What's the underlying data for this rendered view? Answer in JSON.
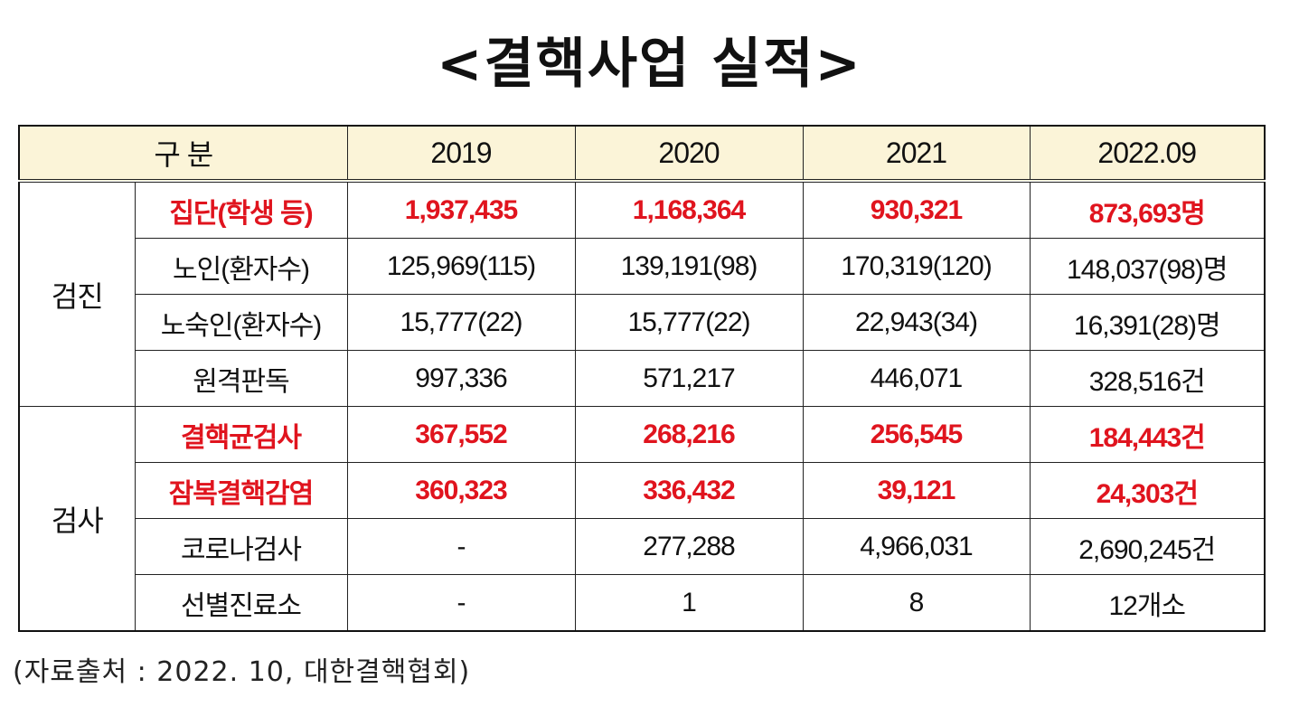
{
  "title": "<결핵사업 실적>",
  "table": {
    "header": {
      "category": "구 분",
      "years": [
        "2019",
        "2020",
        "2021",
        "2022.09"
      ]
    },
    "groups": [
      {
        "label": "검진",
        "rows": [
          {
            "label": "집단(학생 등)",
            "highlight": true,
            "values": [
              "1,937,435",
              "1,168,364",
              "930,321",
              "873,693명"
            ]
          },
          {
            "label": "노인(환자수)",
            "highlight": false,
            "values": [
              "125,969(115)",
              "139,191(98)",
              "170,319(120)",
              "148,037(98)명"
            ]
          },
          {
            "label": "노숙인(환자수)",
            "highlight": false,
            "values": [
              "15,777(22)",
              "15,777(22)",
              "22,943(34)",
              "16,391(28)명"
            ]
          },
          {
            "label": "원격판독",
            "highlight": false,
            "values": [
              "997,336",
              "571,217",
              "446,071",
              "328,516건"
            ]
          }
        ]
      },
      {
        "label": "검사",
        "rows": [
          {
            "label": "결핵균검사",
            "highlight": true,
            "values": [
              "367,552",
              "268,216",
              "256,545",
              "184,443건"
            ]
          },
          {
            "label": "잠복결핵감염",
            "highlight": true,
            "values": [
              "360,323",
              "336,432",
              "39,121",
              "24,303건"
            ]
          },
          {
            "label": "코로나검사",
            "highlight": false,
            "values": [
              "-",
              "277,288",
              "4,966,031",
              "2,690,245건"
            ]
          },
          {
            "label": "선별진료소",
            "highlight": false,
            "values": [
              "-",
              "1",
              "8",
              "12개소"
            ]
          }
        ]
      }
    ]
  },
  "source": "(자료출처 : 2022. 10, 대한결핵협회)",
  "colors": {
    "highlight": "#e0141e",
    "header_bg": "#fbf4d8"
  }
}
